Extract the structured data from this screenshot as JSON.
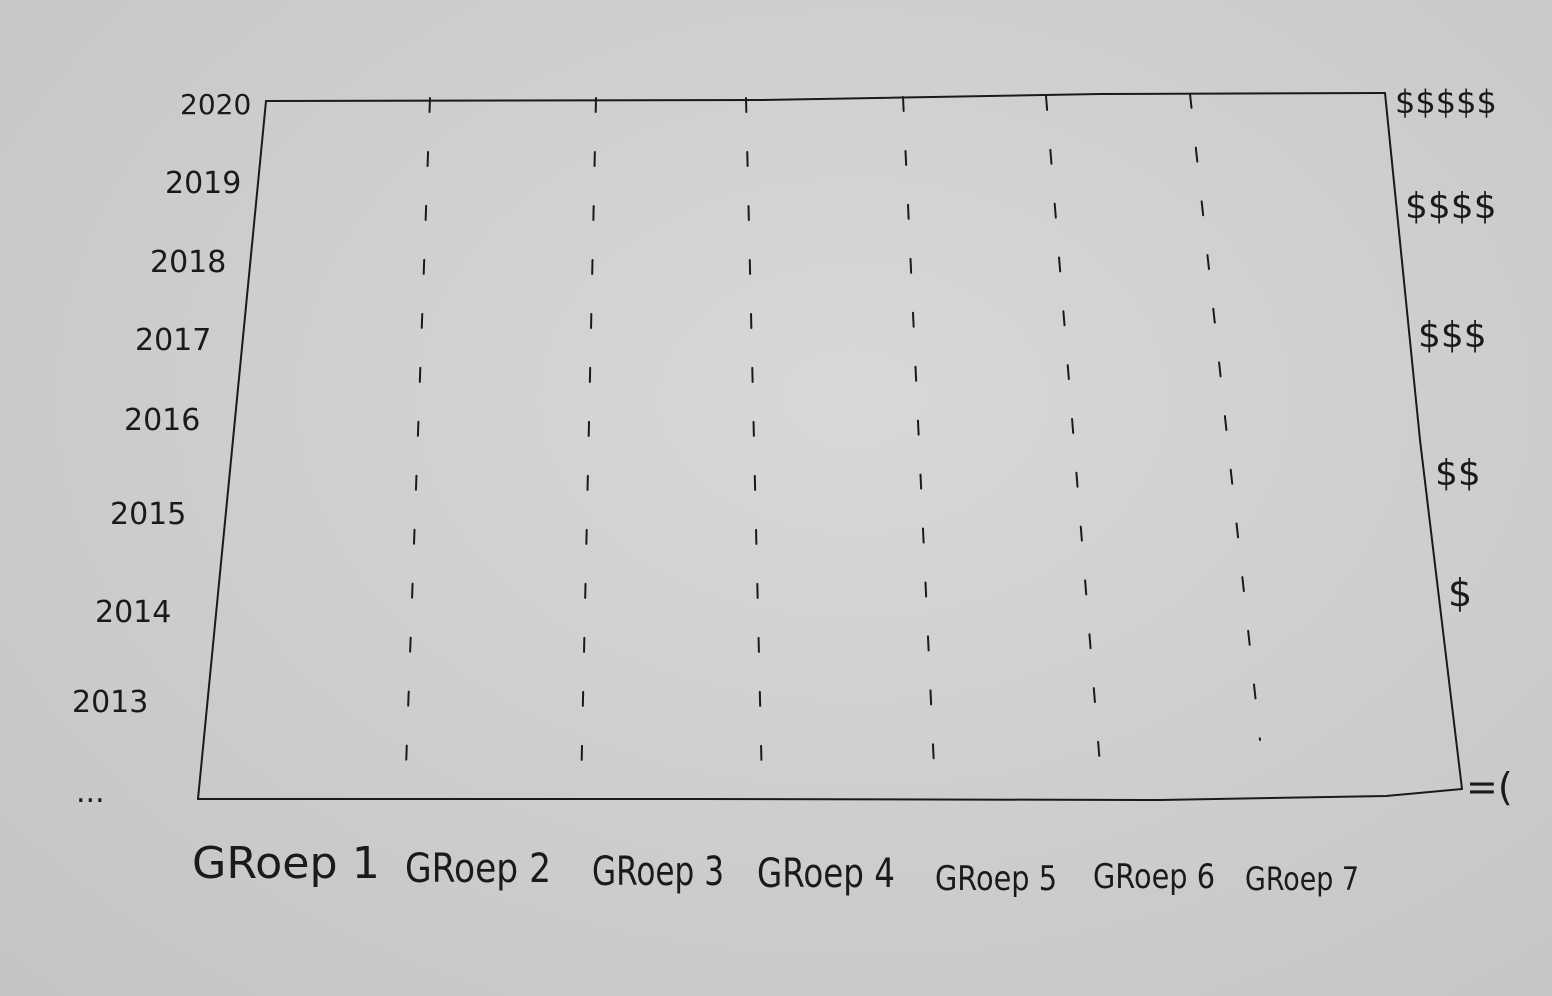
{
  "diagram": {
    "y_axis_left": {
      "top_label": "2020",
      "labels": [
        "2020",
        "2019",
        "2018",
        "2017",
        "2016",
        "2015",
        "2014",
        "2013"
      ],
      "bottom_label": "..."
    },
    "y_axis_right": {
      "labels": [
        "$$$$$",
        "$$$$",
        "$$$",
        "$$",
        "$",
        "=("
      ]
    },
    "x_axis": {
      "groups": [
        "GRoep 1",
        "GRoep 2",
        "GRoep 3",
        "GRoep 4",
        "GRoep 5",
        "GRoep 6",
        "GRoep 7"
      ]
    },
    "line_style": "dashed",
    "stroke_color": "#1a1a1a",
    "paper_color": "#cfcfcd"
  }
}
